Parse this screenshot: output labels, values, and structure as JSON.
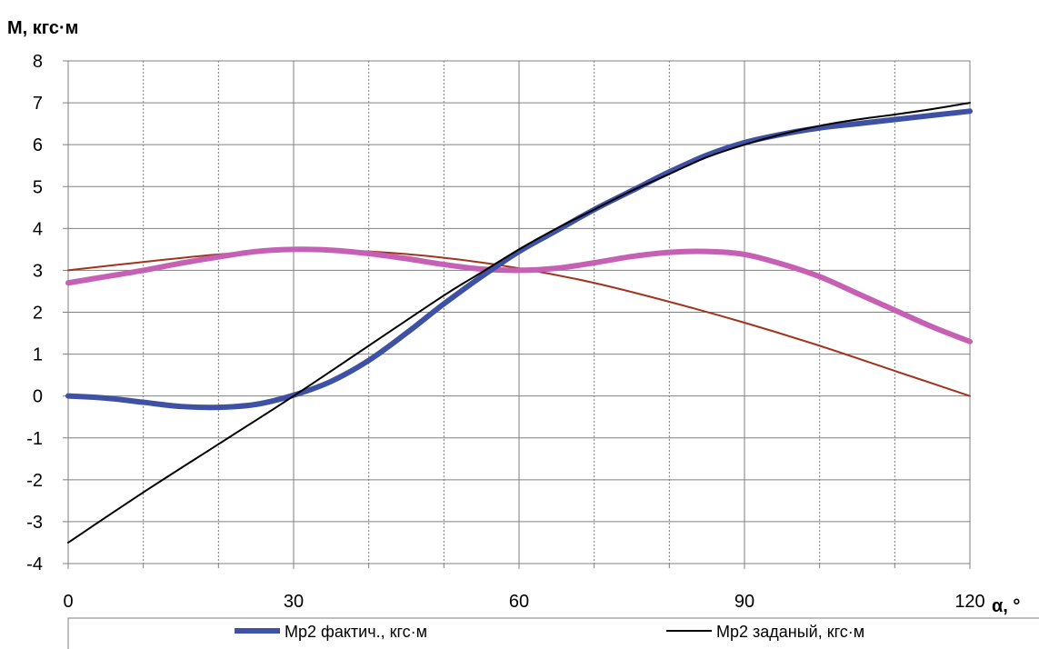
{
  "chart_data": {
    "type": "line",
    "title": "",
    "xlabel": "α, °",
    "ylabel": "M, кгс·м",
    "xlim": [
      0,
      120
    ],
    "ylim": [
      -4,
      8
    ],
    "x_ticks": [
      0,
      30,
      60,
      90,
      120
    ],
    "x_minor_step": 10,
    "y_ticks": [
      -4,
      -3,
      -2,
      -1,
      0,
      1,
      2,
      3,
      4,
      5,
      6,
      7,
      8
    ],
    "grid": true,
    "legend": "bottom",
    "series": [
      {
        "name": "Мр2 фактич., кгс·м",
        "color": "#3f51a5",
        "width": "thick",
        "in_legend": true,
        "x": [
          0,
          5,
          10,
          15,
          20,
          25,
          30,
          35,
          40,
          45,
          50,
          55,
          60,
          65,
          70,
          75,
          80,
          85,
          90,
          95,
          100,
          105,
          110,
          115,
          120
        ],
        "y": [
          0,
          -0.05,
          -0.15,
          -0.25,
          -0.27,
          -0.2,
          0.02,
          0.35,
          0.85,
          1.5,
          2.2,
          2.85,
          3.45,
          3.95,
          4.45,
          4.9,
          5.35,
          5.75,
          6.05,
          6.25,
          6.4,
          6.5,
          6.6,
          6.7,
          6.8
        ]
      },
      {
        "name": "Мр2 заданый, кгс·м",
        "color": "#000000",
        "width": "thin",
        "in_legend": true,
        "x": [
          0,
          10,
          20,
          30,
          40,
          50,
          55,
          60,
          65,
          70,
          75,
          80,
          85,
          90,
          95,
          100,
          105,
          110,
          115,
          120
        ],
        "y": [
          -3.5,
          -2.3,
          -1.15,
          0,
          1.2,
          2.4,
          2.95,
          3.5,
          4.0,
          4.45,
          4.9,
          5.3,
          5.7,
          6.0,
          6.25,
          6.45,
          6.6,
          6.72,
          6.85,
          7.0
        ]
      },
      {
        "name": "",
        "color": "#a0341e",
        "width": "thin",
        "in_legend": false,
        "x": [
          0,
          10,
          20,
          30,
          40,
          50,
          60,
          70,
          80,
          90,
          100,
          110,
          120
        ],
        "y": [
          3.0,
          3.2,
          3.38,
          3.5,
          3.45,
          3.3,
          3.05,
          2.7,
          2.25,
          1.75,
          1.2,
          0.6,
          0.0
        ]
      },
      {
        "name": "",
        "color": "#c660b4",
        "width": "thick",
        "in_legend": false,
        "x": [
          0,
          5,
          10,
          15,
          20,
          25,
          30,
          35,
          40,
          45,
          50,
          55,
          60,
          65,
          70,
          75,
          80,
          85,
          90,
          95,
          100,
          105,
          110,
          115,
          120
        ],
        "y": [
          2.7,
          2.85,
          3.0,
          3.17,
          3.32,
          3.45,
          3.5,
          3.48,
          3.4,
          3.28,
          3.14,
          3.03,
          3.0,
          3.05,
          3.18,
          3.33,
          3.43,
          3.45,
          3.38,
          3.15,
          2.85,
          2.45,
          2.05,
          1.65,
          1.3
        ]
      }
    ]
  }
}
